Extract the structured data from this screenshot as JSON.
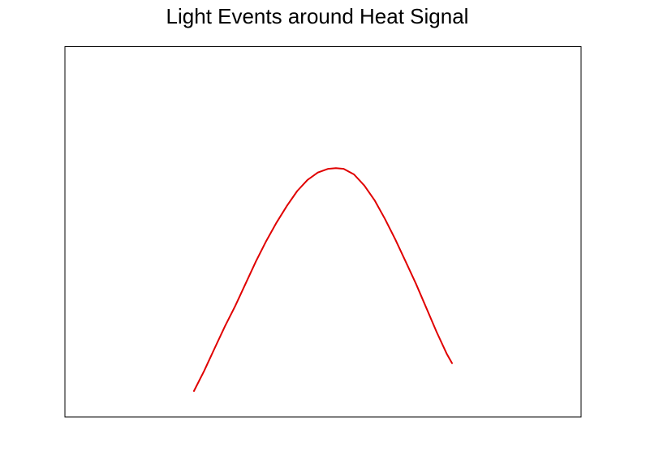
{
  "chart_data": {
    "type": "line",
    "title": "Light Events around Heat Signal",
    "xlabel": "",
    "ylabel": "",
    "xlim": [
      0,
      100
    ],
    "ylim": [
      0,
      100
    ],
    "grid": false,
    "series": [
      {
        "color": "#e00000",
        "x": [
          25,
          27,
          29,
          31,
          33,
          35,
          37,
          39,
          41,
          43,
          45,
          47,
          49,
          51,
          52.5,
          54,
          56,
          58,
          60,
          62,
          64,
          66,
          68,
          70,
          72,
          74,
          75
        ],
        "y": [
          7,
          12.5,
          18.5,
          24.5,
          30,
          36,
          42,
          47.5,
          52.5,
          57,
          61,
          64,
          66,
          67,
          67.2,
          67,
          65.5,
          62.5,
          58.5,
          53.5,
          48,
          42,
          36,
          29.5,
          23,
          17,
          14.5
        ]
      }
    ]
  }
}
